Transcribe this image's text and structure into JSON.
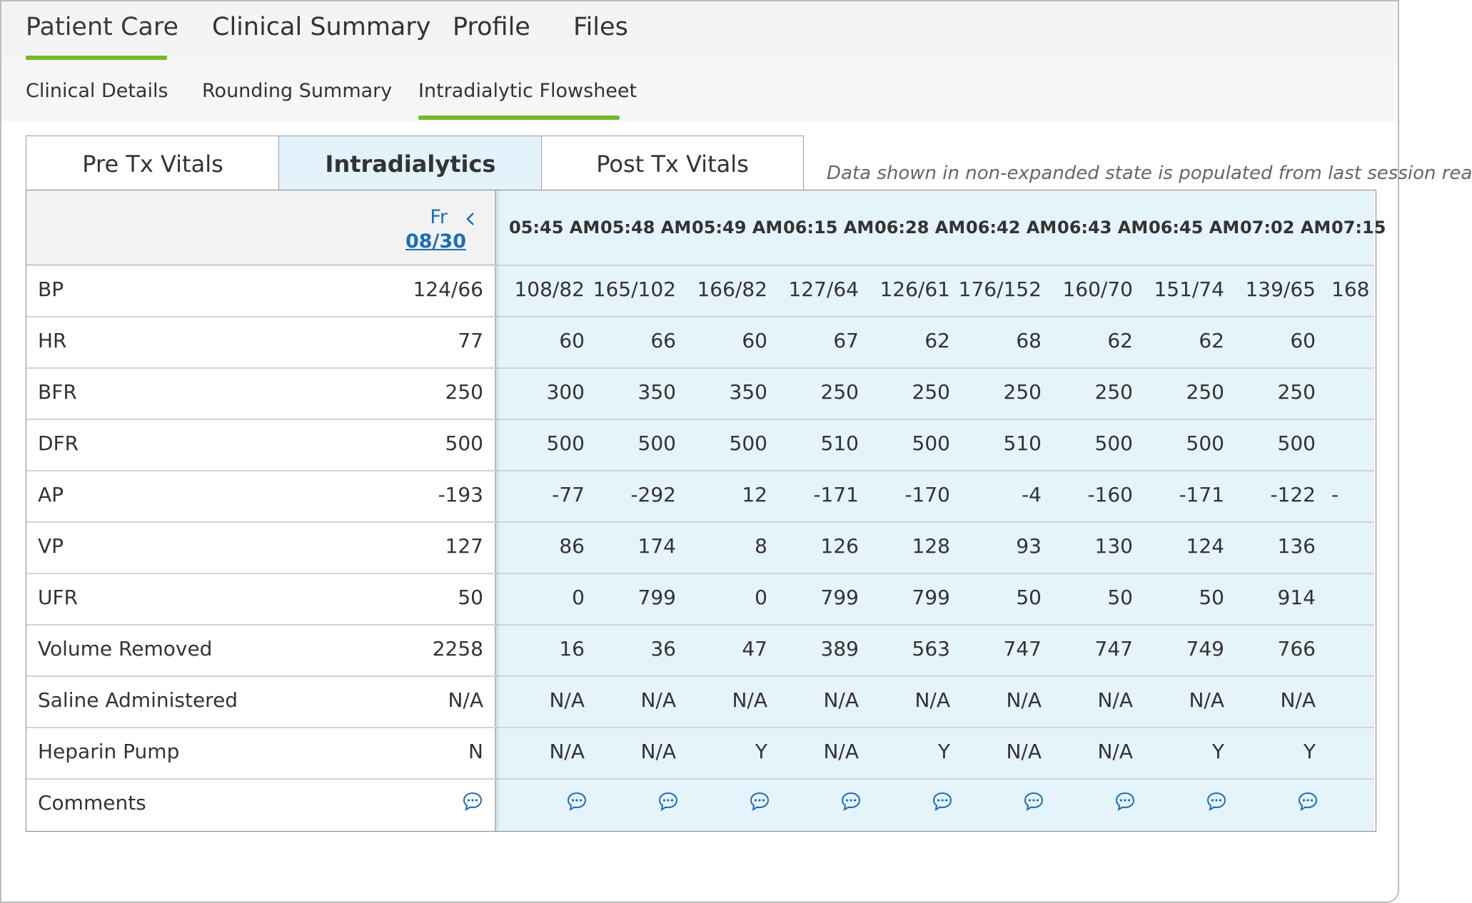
{
  "primary_nav": {
    "tabs": [
      "Patient Care",
      "Clinical Summary",
      "Profile",
      "Files"
    ],
    "active": "Patient Care"
  },
  "secondary_nav": {
    "tabs": [
      "Clinical Details",
      "Rounding Summary",
      "Intradialytic Flowsheet"
    ],
    "active": "Intradialytic Flowsheet"
  },
  "vitals_tabs": {
    "tabs": [
      "Pre Tx Vitals",
      "Intradialytics",
      "Post Tx Vitals"
    ],
    "active": "Intradialytics",
    "note": "Data shown in non-expanded state is populated from last session rea"
  },
  "session": {
    "day": "Fr",
    "date": "08/30"
  },
  "times": [
    "05:45 AM",
    "05:48 AM",
    "05:49 AM",
    "06:15 AM",
    "06:28 AM",
    "06:42 AM",
    "06:43 AM",
    "06:45 AM",
    "07:02 AM",
    "07:15"
  ],
  "rows": [
    {
      "label": "BP",
      "current": "124/66",
      "values": [
        "108/82",
        "165/102",
        "166/82",
        "127/64",
        "126/61",
        "176/152",
        "160/70",
        "151/74",
        "139/65",
        "168"
      ]
    },
    {
      "label": "HR",
      "current": "77",
      "values": [
        "60",
        "66",
        "60",
        "67",
        "62",
        "68",
        "62",
        "62",
        "60",
        ""
      ]
    },
    {
      "label": "BFR",
      "current": "250",
      "values": [
        "300",
        "350",
        "350",
        "250",
        "250",
        "250",
        "250",
        "250",
        "250",
        ""
      ]
    },
    {
      "label": "DFR",
      "current": "500",
      "values": [
        "500",
        "500",
        "500",
        "510",
        "500",
        "510",
        "500",
        "500",
        "500",
        ""
      ]
    },
    {
      "label": "AP",
      "current": "-193",
      "values": [
        "-77",
        "-292",
        "12",
        "-171",
        "-170",
        "-4",
        "-160",
        "-171",
        "-122",
        "-"
      ]
    },
    {
      "label": "VP",
      "current": "127",
      "values": [
        "86",
        "174",
        "8",
        "126",
        "128",
        "93",
        "130",
        "124",
        "136",
        ""
      ]
    },
    {
      "label": "UFR",
      "current": "50",
      "values": [
        "0",
        "799",
        "0",
        "799",
        "799",
        "50",
        "50",
        "50",
        "914",
        ""
      ]
    },
    {
      "label": "Volume Removed",
      "current": "2258",
      "values": [
        "16",
        "36",
        "47",
        "389",
        "563",
        "747",
        "747",
        "749",
        "766",
        ""
      ]
    },
    {
      "label": "Saline Administered",
      "current": "N/A",
      "values": [
        "N/A",
        "N/A",
        "N/A",
        "N/A",
        "N/A",
        "N/A",
        "N/A",
        "N/A",
        "N/A",
        ""
      ]
    },
    {
      "label": "Heparin Pump",
      "current": "N",
      "values": [
        "N/A",
        "N/A",
        "Y",
        "N/A",
        "Y",
        "N/A",
        "N/A",
        "Y",
        "Y",
        ""
      ]
    },
    {
      "label": "Comments",
      "current": "",
      "values": [
        "",
        "",
        "",
        "",
        "",
        "",
        "",
        "",
        "",
        ""
      ]
    }
  ],
  "colors": {
    "accent_green": "#76b82a",
    "link_blue": "#1a6fb5",
    "column_bg": "#e5f3fb"
  },
  "icons": {
    "comment": "comment-bubble-icon",
    "prev": "chevron-left-icon"
  }
}
